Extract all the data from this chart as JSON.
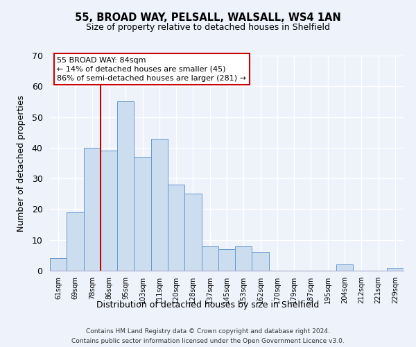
{
  "title1": "55, BROAD WAY, PELSALL, WALSALL, WS4 1AN",
  "title2": "Size of property relative to detached houses in Shelfield",
  "xlabel": "Distribution of detached houses by size in Shelfield",
  "ylabel": "Number of detached properties",
  "bar_labels": [
    "61sqm",
    "69sqm",
    "78sqm",
    "86sqm",
    "95sqm",
    "103sqm",
    "111sqm",
    "120sqm",
    "128sqm",
    "137sqm",
    "145sqm",
    "153sqm",
    "162sqm",
    "170sqm",
    "179sqm",
    "187sqm",
    "195sqm",
    "204sqm",
    "212sqm",
    "221sqm",
    "229sqm"
  ],
  "bar_values": [
    4,
    19,
    40,
    39,
    55,
    37,
    43,
    28,
    25,
    8,
    7,
    8,
    6,
    0,
    0,
    0,
    0,
    2,
    0,
    0,
    1
  ],
  "bar_color": "#ccddf0",
  "bar_edge_color": "#6699cc",
  "vline_color": "#cc0000",
  "vline_x_idx": 3,
  "annotation_title": "55 BROAD WAY: 84sqm",
  "annotation_line1": "← 14% of detached houses are smaller (45)",
  "annotation_line2": "86% of semi-detached houses are larger (281) →",
  "annotation_box_facecolor": "#ffffff",
  "annotation_box_edgecolor": "#cc0000",
  "ylim": [
    0,
    70
  ],
  "yticks": [
    0,
    10,
    20,
    30,
    40,
    50,
    60,
    70
  ],
  "footnote1": "Contains HM Land Registry data © Crown copyright and database right 2024.",
  "footnote2": "Contains public sector information licensed under the Open Government Licence v3.0.",
  "bg_color": "#eef2fb",
  "grid_color": "#ffffff",
  "spine_color": "#aaaacc"
}
